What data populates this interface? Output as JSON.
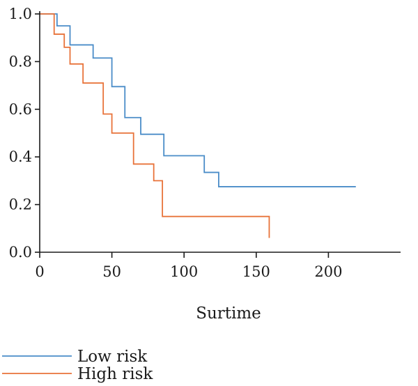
{
  "chart_data": {
    "type": "line",
    "step": true,
    "xlabel": "Surtime",
    "ylabel": "",
    "xlim": [
      0,
      250
    ],
    "ylim": [
      0,
      1
    ],
    "xticks": [
      0,
      50,
      100,
      150,
      200
    ],
    "xtick_labels": [
      "0",
      "50",
      "100",
      "150",
      "200"
    ],
    "yticks": [
      0,
      0.2,
      0.4,
      0.6,
      0.8,
      1.0
    ],
    "ytick_labels": [
      "0.0",
      "0.2",
      "0.4",
      "0.6",
      "0.8",
      "1.0"
    ],
    "grid": false,
    "legend_position": "bottom-left",
    "series": [
      {
        "name": "Low risk",
        "color": "#4a8cc8",
        "x": [
          0,
          12,
          21,
          37,
          50,
          59,
          70,
          86,
          114,
          124,
          219
        ],
        "y": [
          1.0,
          0.95,
          0.87,
          0.815,
          0.695,
          0.565,
          0.495,
          0.405,
          0.335,
          0.275,
          0.275
        ]
      },
      {
        "name": "High risk",
        "color": "#e8733a",
        "x": [
          0,
          10,
          17,
          21,
          30,
          44,
          50,
          65,
          79,
          85,
          159,
          159
        ],
        "y": [
          1.0,
          0.915,
          0.86,
          0.79,
          0.71,
          0.58,
          0.5,
          0.37,
          0.3,
          0.15,
          0.15,
          0.06
        ]
      }
    ]
  }
}
